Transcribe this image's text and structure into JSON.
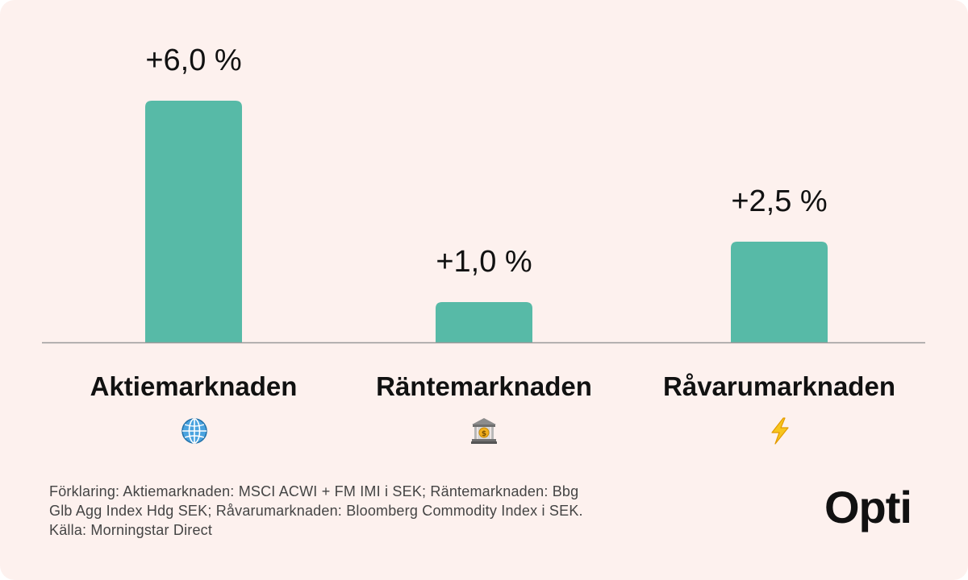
{
  "colors": {
    "background": "#fdf1ee",
    "bar": "#57baa7",
    "axis": "#9a9a9a",
    "text": "#111111",
    "footnote": "#444444"
  },
  "chart_data": {
    "type": "bar",
    "title": "",
    "xlabel": "",
    "ylabel": "",
    "categories": [
      "Aktiemarknaden",
      "Räntemarknaden",
      "Råvarumarknaden"
    ],
    "values": [
      6.0,
      1.0,
      2.5
    ],
    "value_labels": [
      "+6,0 %",
      "+1,0 %",
      "+2,5 %"
    ],
    "icons": [
      "globe-icon",
      "bank-icon",
      "lightning-icon"
    ],
    "ylim": [
      0,
      6.0
    ],
    "grid": false,
    "unit": "%"
  },
  "footnote": {
    "line1": "Förklaring: Aktiemarknaden: MSCI ACWI + FM IMI i SEK; Räntemarknaden: Bbg",
    "line2": "Glb Agg Index Hdg SEK; Råvarumarknaden: Bloomberg Commodity Index i SEK.",
    "line3": "Källa: Morningstar Direct"
  },
  "logo": {
    "text": "Opti"
  }
}
